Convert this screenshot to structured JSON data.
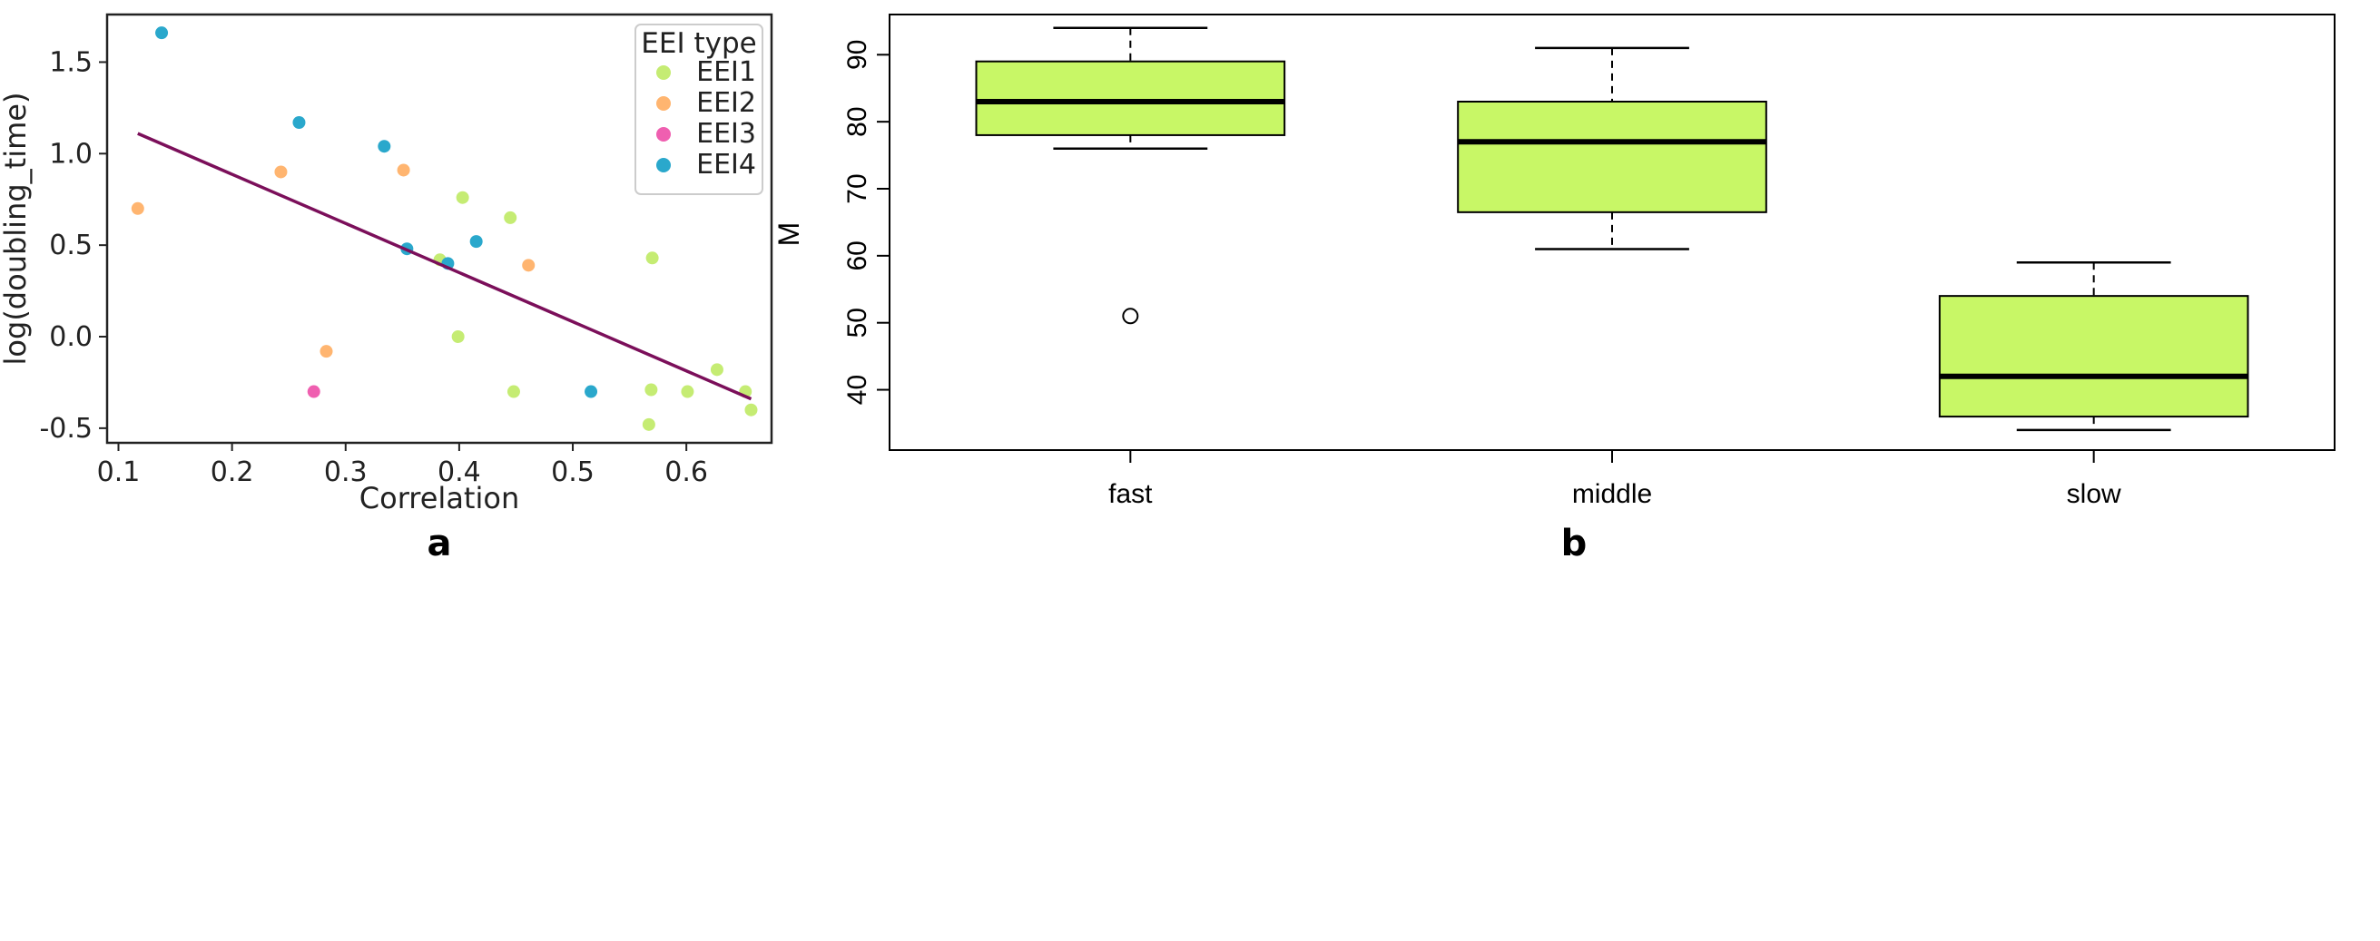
{
  "chart_data": [
    {
      "type": "scatter",
      "panel_label": "a",
      "xlabel": "Correlation",
      "ylabel": "log(doubling_time)",
      "xlim": [
        0.09,
        0.675
      ],
      "ylim": [
        -0.58,
        1.76
      ],
      "xticks": [
        "0.1",
        "0.2",
        "0.3",
        "0.4",
        "0.5",
        "0.6"
      ],
      "yticks": [
        "-0.5",
        "0.0",
        "0.5",
        "1.0",
        "1.5"
      ],
      "legend": {
        "title": "EEI type",
        "position": "top-right"
      },
      "series": [
        {
          "name": "EEI1",
          "color": "#c5ec73",
          "points": [
            [
              0.403,
              0.76
            ],
            [
              0.445,
              0.65
            ],
            [
              0.383,
              0.42
            ],
            [
              0.57,
              0.43
            ],
            [
              0.399,
              0.0
            ],
            [
              0.448,
              -0.3
            ],
            [
              0.627,
              -0.18
            ],
            [
              0.569,
              -0.29
            ],
            [
              0.601,
              -0.3
            ],
            [
              0.652,
              -0.3
            ],
            [
              0.567,
              -0.48
            ],
            [
              0.657,
              -0.4
            ]
          ]
        },
        {
          "name": "EEI2",
          "color": "#ffb570",
          "points": [
            [
              0.117,
              0.7
            ],
            [
              0.243,
              0.9
            ],
            [
              0.351,
              0.91
            ],
            [
              0.461,
              0.39
            ],
            [
              0.283,
              -0.08
            ]
          ]
        },
        {
          "name": "EEI3",
          "color": "#ef5fb0",
          "points": [
            [
              0.272,
              -0.3
            ]
          ]
        },
        {
          "name": "EEI4",
          "color": "#2aa8cc",
          "points": [
            [
              0.138,
              1.66
            ],
            [
              0.259,
              1.17
            ],
            [
              0.334,
              1.04
            ],
            [
              0.354,
              0.48
            ],
            [
              0.39,
              0.4
            ],
            [
              0.415,
              0.52
            ],
            [
              0.516,
              -0.3
            ]
          ]
        }
      ],
      "regression_line": {
        "color": "#7b0f5a",
        "from": [
          0.117,
          1.11
        ],
        "to": [
          0.657,
          -0.34
        ]
      }
    },
    {
      "type": "box",
      "panel_label": "b",
      "xlabel": "",
      "ylabel": "M",
      "ylim": [
        31,
        96
      ],
      "yticks": [
        "40",
        "50",
        "60",
        "70",
        "80",
        "90"
      ],
      "box_color": "#c8f766",
      "groups": [
        {
          "name": "fast",
          "whisker_low": 76,
          "q1": 78,
          "median": 83,
          "q3": 89,
          "whisker_high": 94,
          "outliers": [
            51
          ]
        },
        {
          "name": "middle",
          "whisker_low": 61,
          "q1": 66.5,
          "median": 77,
          "q3": 83,
          "whisker_high": 91,
          "outliers": []
        },
        {
          "name": "slow",
          "whisker_low": 34,
          "q1": 36,
          "median": 42,
          "q3": 54,
          "whisker_high": 59,
          "outliers": []
        }
      ]
    }
  ]
}
